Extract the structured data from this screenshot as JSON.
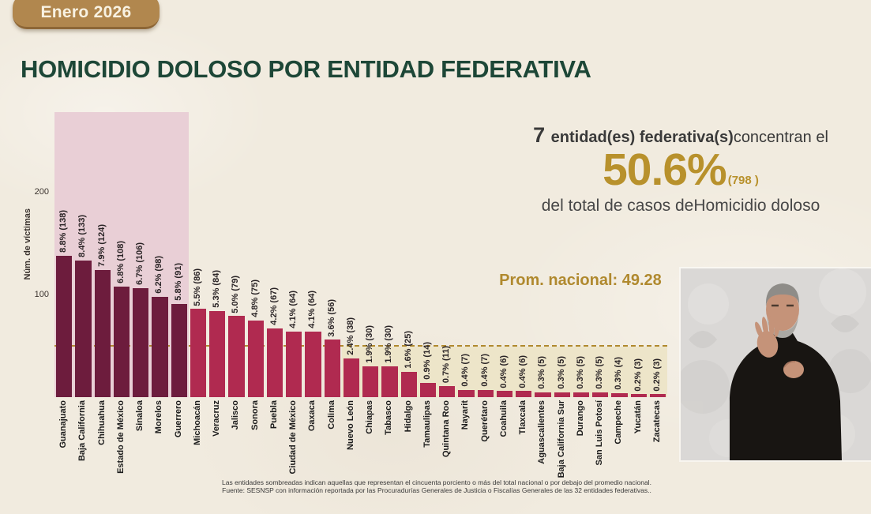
{
  "badge": {
    "label": "Enero 2026"
  },
  "title": "HOMICIDIO DOLOSO POR ENTIDAD FEDERATIVA",
  "summary": {
    "count_bold": "7 entidad(es) federativa(s)",
    "line1_rest": "concentran el",
    "big_percent": "50.6%",
    "big_count": "(798 )",
    "line3": "del total de casos deHomicidio doloso"
  },
  "promedio_label": "Prom. nacional: 49.28",
  "promedio_value": 49.28,
  "chart_data": {
    "type": "bar",
    "title": "Homicidio doloso por entidad federativa, Enero 2026",
    "ylabel": "Núm. de víctimas",
    "yticks": [
      100,
      200
    ],
    "ylim": [
      0,
      280
    ],
    "highlighted_count": 7,
    "national_average": 49.28,
    "categories": [
      "Guanajuato",
      "Baja California",
      "Chihuahua",
      "Estado de México",
      "Sinaloa",
      "Morelos",
      "Guerrero",
      "Michoacán",
      "Veracruz",
      "Jalisco",
      "Sonora",
      "Puebla",
      "Ciudad de México",
      "Oaxaca",
      "Colima",
      "Nuevo León",
      "Chiapas",
      "Tabasco",
      "Hidalgo",
      "Tamaulipas",
      "Quintana Roo",
      "Nayarit",
      "Querétaro",
      "Coahuila",
      "Tlaxcala",
      "Aguascalientes",
      "Baja California Sur",
      "Durango",
      "San Luis Potosí",
      "Campeche",
      "Yucatán",
      "Zacatecas"
    ],
    "values": [
      138,
      133,
      124,
      108,
      106,
      98,
      91,
      86,
      84,
      79,
      75,
      67,
      64,
      64,
      56,
      38,
      30,
      30,
      25,
      14,
      11,
      7,
      7,
      6,
      6,
      5,
      5,
      5,
      5,
      4,
      3,
      3
    ],
    "labels": [
      "8.8% (138)",
      "8.4% (133)",
      "7.9% (124)",
      "6.8% (108)",
      "6.7% (106)",
      "6.2% (98)",
      "5.8% (91)",
      "5.5% (86)",
      "5.3% (84)",
      "5.0% (79)",
      "4.8% (75)",
      "4.2% (67)",
      "4.1% (64)",
      "4.1% (64)",
      "3.6% (56)",
      "2.4% (38)",
      "1.9% (30)",
      "1.9% (30)",
      "1.6% (25)",
      "0.9% (14)",
      "0.7% (11)",
      "0.4% (7)",
      "0.4% (7)",
      "0.4% (6)",
      "0.4% (6)",
      "0.3% (5)",
      "0.3% (5)",
      "0.3% (5)",
      "0.3% (5)",
      "0.3% (4)",
      "0.2% (3)",
      "0.2% (3)"
    ],
    "legend": "none",
    "grid": false
  },
  "colors": {
    "bar_dark": "#6d1c3d",
    "bar": "#b02a50",
    "highlight_bg": "#e9cfd6",
    "below_avg_bg": "#ede5c9",
    "gold": "#b0892e",
    "title_green": "#1d4737",
    "badge_gold": "#b1874e"
  },
  "footnote": {
    "line1": "Las entidades sombreadas indican aquellas que representan el cincuenta porciento o más del total nacional o por debajo del promedio nacional.",
    "line2": "Fuente: SESNSP con información reportada por las Procuradurías Generales de Justicia o Fiscalías Generales de las 32 entidades federativas.."
  }
}
